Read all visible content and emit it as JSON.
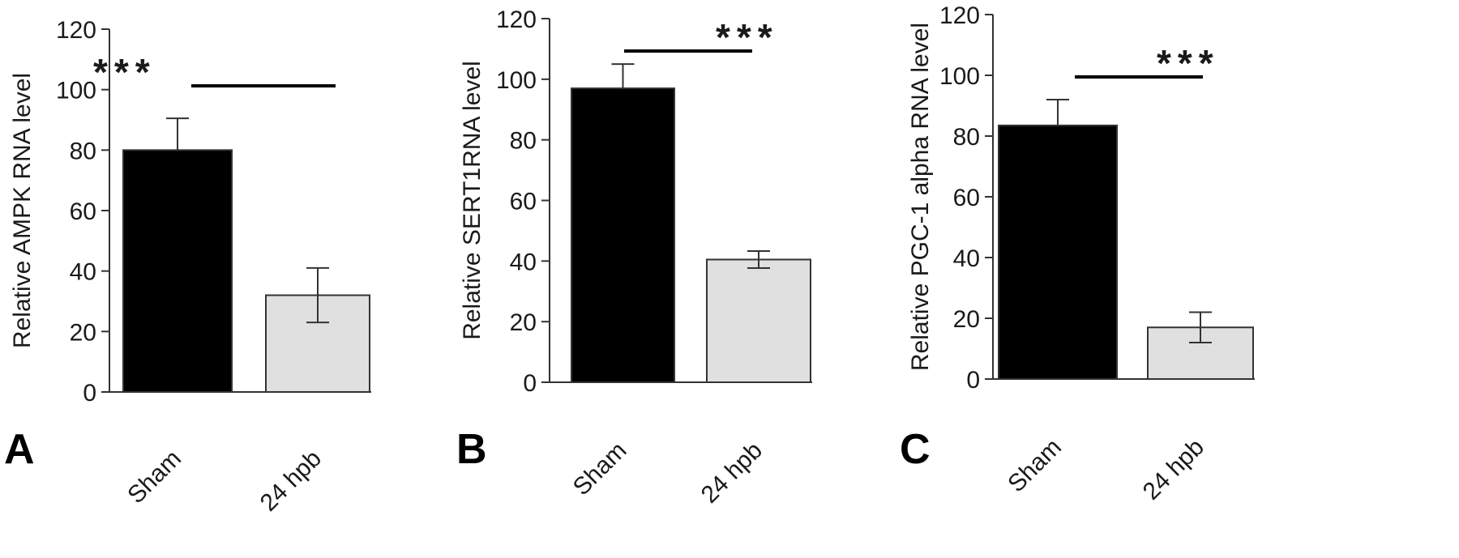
{
  "colors": {
    "sham_bar": "#000000",
    "hpb_bar": "#e0e0e0",
    "bar_stroke": "#333333",
    "axis": "#333333"
  },
  "chart_data": [
    {
      "type": "bar",
      "panel": "A",
      "categories": [
        "Sham",
        "24 hpb"
      ],
      "values": [
        80,
        32
      ],
      "errors": [
        10.5,
        9
      ],
      "ylabel": "Relative AMPK RNA level",
      "ylim": [
        0,
        120
      ],
      "yticks": [
        0,
        20,
        40,
        60,
        80,
        100,
        120
      ],
      "significance": "***",
      "grid": false
    },
    {
      "type": "bar",
      "panel": "B",
      "categories": [
        "Sham",
        "24 hpb"
      ],
      "values": [
        97,
        40.5
      ],
      "errors": [
        8,
        2.8
      ],
      "ylabel": "Relative SERT1RNA level",
      "ylim": [
        0,
        120
      ],
      "yticks": [
        0,
        20,
        40,
        60,
        80,
        100,
        120
      ],
      "significance": "***",
      "grid": false
    },
    {
      "type": "bar",
      "panel": "C",
      "categories": [
        "Sham",
        "24 hpb"
      ],
      "values": [
        83.5,
        17
      ],
      "errors": [
        8.5,
        5
      ],
      "ylabel": "Relative PGC-1 alpha RNA level",
      "ylim": [
        0,
        120
      ],
      "yticks": [
        0,
        20,
        40,
        60,
        80,
        100,
        120
      ],
      "significance": "***",
      "grid": false
    }
  ]
}
